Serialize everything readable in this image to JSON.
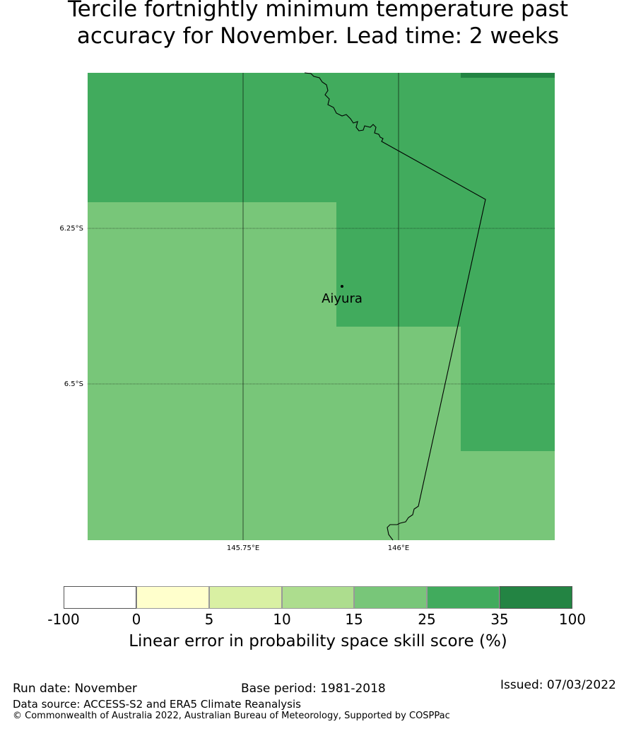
{
  "title": {
    "line1": "Tercile fortnightly minimum temperature past",
    "line2": "accuracy for November. Lead time: 2 weeks"
  },
  "map": {
    "place_label": "Aiyura",
    "lat_labels": [
      "6.25°S",
      "6.5°S"
    ],
    "lon_labels": [
      "145.75°E",
      "146°E"
    ],
    "colors": {
      "class_25_35": "#41ab5d",
      "class_15_25": "#78c679",
      "class_35_100": "#238443",
      "coastline": "#000000",
      "gridline": "#000000"
    }
  },
  "colorbar": {
    "ticks": [
      "-100",
      "0",
      "5",
      "10",
      "15",
      "25",
      "35",
      "100"
    ],
    "colors": [
      "#ffffff",
      "#ffffcc",
      "#d9f0a3",
      "#addd8e",
      "#78c679",
      "#41ab5d",
      "#238443"
    ],
    "label": "Linear error in probability space skill score (%)"
  },
  "footer": {
    "run_date": "Run date: November",
    "base_period": "Base period: 1981-2018",
    "issued": "Issued: 07/03/2022",
    "data_source": "Data source: ACCESS-S2 and ERA5 Climate Reanalysis",
    "copyright": "© Commonwealth of Australia 2022, Australian Bureau of Meteorology, Supported by COSPPac"
  }
}
